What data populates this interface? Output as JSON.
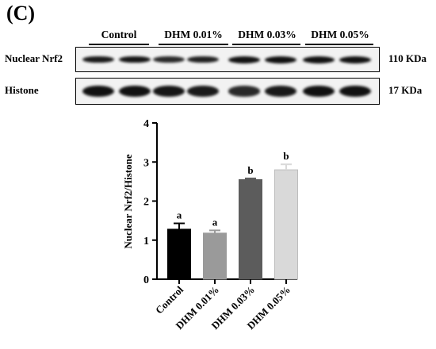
{
  "panel_label": "(C)",
  "blot": {
    "groups": [
      "Control",
      "DHM 0.01%",
      "DHM 0.03%",
      "DHM 0.05%"
    ],
    "rows": [
      {
        "label": "Nuclear Nrf2",
        "size": "110 KDa",
        "band_intensity": [
          0.9,
          0.95,
          0.75,
          0.85,
          1.0,
          1.0,
          1.0,
          1.0
        ]
      },
      {
        "label": "Histone",
        "size": "17 KDa",
        "band_intensity": [
          1.0,
          1.0,
          0.95,
          0.9,
          0.75,
          0.9,
          1.0,
          1.0
        ]
      }
    ]
  },
  "chart_data": {
    "type": "bar",
    "categories": [
      "Control",
      "DHM 0.01%",
      "DHM 0.03%",
      "DHM 0.05%"
    ],
    "values": [
      1.28,
      1.18,
      2.55,
      2.8
    ],
    "errors": [
      0.15,
      0.07,
      0.03,
      0.14
    ],
    "significance": [
      "a",
      "a",
      "b",
      "b"
    ],
    "bar_colors": [
      "#000000",
      "#9a9a9a",
      "#5c5c5c",
      "#d9d9d9"
    ],
    "ylabel": "Nuclear Nrf2/Histone",
    "xlabel": "",
    "ylim": [
      0,
      4
    ],
    "yticks": [
      0,
      1,
      2,
      3,
      4
    ],
    "grid": false
  }
}
